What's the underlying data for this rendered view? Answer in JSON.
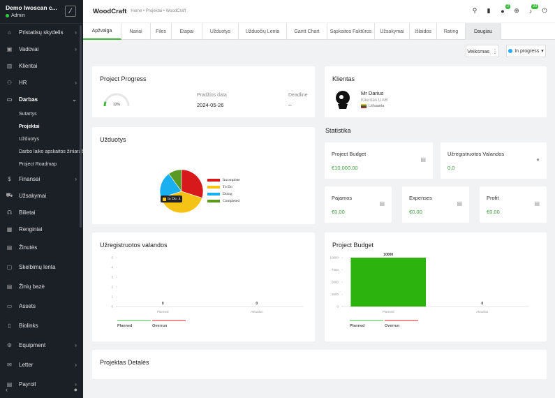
{
  "sidebar": {
    "company": "Demo Iwoscan c...",
    "role": "Admin",
    "items": [
      {
        "label": "Pristatisų skydelis",
        "icon": "home-icon",
        "chevron": true
      },
      {
        "label": "Vadovai",
        "icon": "id-card-icon",
        "chevron": true
      },
      {
        "label": "Klientai",
        "icon": "chart-bars-icon",
        "chevron": false
      },
      {
        "label": "HR",
        "icon": "users-icon",
        "chevron": true
      },
      {
        "label": "Darbas",
        "icon": "briefcase-icon",
        "chevron": true
      }
    ],
    "subitems": [
      "Sutartys",
      "Projektai",
      "Užduotys",
      "Darbo laiko apskaitos žiniaraštis",
      "Project Roadmap"
    ],
    "items2": [
      {
        "label": "Finansai",
        "icon": "dollar-icon",
        "chevron": true
      },
      {
        "label": "Užsakymai",
        "icon": "cart-icon",
        "chevron": false
      },
      {
        "label": "Bilietai",
        "icon": "headset-icon",
        "chevron": false
      },
      {
        "label": "Renginiai",
        "icon": "calendar-icon",
        "chevron": false
      },
      {
        "label": "Žinutės",
        "icon": "message-icon",
        "chevron": false
      },
      {
        "label": "Skelbimų lenta",
        "icon": "clipboard-icon",
        "chevron": false
      },
      {
        "label": "Žinių bazė",
        "icon": "book-icon",
        "chevron": false
      },
      {
        "label": "Assets",
        "icon": "monitor-icon",
        "chevron": false
      },
      {
        "label": "Biolinks",
        "icon": "mobile-icon",
        "chevron": false
      },
      {
        "label": "Equipment",
        "icon": "gear-icon",
        "chevron": true
      },
      {
        "label": "Letter",
        "icon": "envelope-icon",
        "chevron": true
      },
      {
        "label": "Payroll",
        "icon": "file-icon",
        "chevron": true
      }
    ]
  },
  "topbar": {
    "title": "WoodCraft",
    "breadcrumb": "Home • Projektai • WoodCraft",
    "badge_notes": "2",
    "badge_bell": "23"
  },
  "tabs": [
    "Apžvalga",
    "Nariai",
    "Files",
    "Etapai",
    "Užduotys",
    "Užduočių Lenta",
    "Gantt Chart",
    "Sąskaitos Faktūros",
    "Užsakymai",
    "Išlaidos",
    "Rating",
    "Daugiau"
  ],
  "actions": {
    "veiksmas": "Veiksmas",
    "status": "In progress"
  },
  "progress": {
    "title": "Project Progress",
    "percent_label": "12%",
    "percent": 12,
    "start_label": "Pradžios data",
    "start_value": "2024-05-26",
    "deadline_label": "Deadline",
    "deadline_value": "--"
  },
  "client": {
    "title": "Klientas",
    "name": "Mr Darius",
    "company": "Klientas UAB",
    "country": "Lithuania"
  },
  "tasks": {
    "title": "Užduotys",
    "tooltip": "In Do: 4"
  },
  "chart_data": [
    {
      "type": "pie",
      "categories": [
        "Incomplete",
        "To Do",
        "Doing",
        "Completed"
      ],
      "values": [
        3,
        4,
        2,
        1
      ],
      "colors": [
        "#d7191c",
        "#f5c216",
        "#1ab0f0",
        "#5a9a24"
      ],
      "legend": "right"
    },
    {
      "type": "bar",
      "title": "Užregistruotos valandos",
      "categories": [
        "Planned",
        "Aktualus"
      ],
      "values": [
        0,
        0
      ],
      "ylim": [
        0,
        5
      ],
      "yticks": [
        "0",
        "1",
        "2",
        "3",
        "4",
        "5"
      ],
      "legend": [
        "Planned",
        "Overrun"
      ],
      "legend_colors": [
        "#3cb93c",
        "#d7191c"
      ]
    },
    {
      "type": "bar",
      "title": "Project Budget",
      "categories": [
        "Planned",
        "Aktualus"
      ],
      "values": [
        10000,
        0
      ],
      "ylim": [
        0,
        10000
      ],
      "yticks": [
        "0",
        "2500",
        "5000",
        "7500",
        "10000"
      ],
      "legend": [
        "Planned",
        "Overrun"
      ],
      "legend_colors": [
        "#3cb93c",
        "#d7191c"
      ]
    }
  ],
  "statistics": {
    "title": "Statistika",
    "budget_label": "Project Budget",
    "budget_value": "€10,000.00",
    "hours_label": "Užregistruotos Valandos",
    "hours_value": "0.0",
    "income_label": "Pajamos",
    "income_value": "€0.00",
    "expenses_label": "Expenses",
    "expenses_value": "€0.00",
    "profit_label": "Profit",
    "profit_value": "€0.00"
  },
  "details": {
    "title": "Projektas Detalės"
  }
}
